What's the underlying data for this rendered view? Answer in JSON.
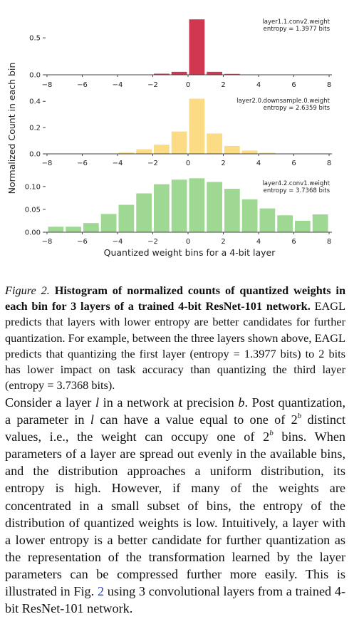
{
  "chart_data": [
    {
      "type": "bar",
      "annotation": [
        "layer1.1.conv2.weight",
        "entropy = 1.3977 bits"
      ],
      "bar_color": "#d1374f",
      "x": [
        -8,
        -7,
        -6,
        -5,
        -4,
        -3,
        -2,
        -1,
        0,
        1,
        2,
        3,
        4,
        5,
        6,
        7
      ],
      "values": [
        0,
        0,
        0,
        0,
        0,
        0.002,
        0.015,
        0.04,
        0.75,
        0.04,
        0.012,
        0.002,
        0,
        0,
        0,
        0
      ],
      "ylim": [
        0,
        0.8
      ],
      "yticks": [
        "0.0",
        "0.5"
      ],
      "xticks": [
        "−8",
        "−6",
        "−4",
        "−2",
        "0",
        "2",
        "4",
        "6",
        "8"
      ]
    },
    {
      "type": "bar",
      "annotation": [
        "layer2.0.downsample.0.weight",
        "entropy = 2.6359 bits"
      ],
      "bar_color": "#fbdb84",
      "x": [
        -8,
        -7,
        -6,
        -5,
        -4,
        -3,
        -2,
        -1,
        0,
        1,
        2,
        3,
        4,
        5,
        6,
        7
      ],
      "values": [
        0,
        0,
        0,
        0.002,
        0.01,
        0.035,
        0.07,
        0.17,
        0.42,
        0.155,
        0.06,
        0.025,
        0.008,
        0.002,
        0,
        0
      ],
      "ylim": [
        0,
        0.45
      ],
      "yticks": [
        "0.0",
        "0.2",
        "0.4"
      ],
      "xticks": [
        "−8",
        "−6",
        "−4",
        "−2",
        "0",
        "2",
        "4",
        "6",
        "8"
      ]
    },
    {
      "type": "bar",
      "annotation": [
        "layer4.2.conv1.weight",
        "entropy = 3.7368 bits"
      ],
      "bar_color": "#9ed893",
      "x": [
        -8,
        -7,
        -6,
        -5,
        -4,
        -3,
        -2,
        -1,
        0,
        1,
        2,
        3,
        4,
        5,
        6,
        7
      ],
      "values": [
        0.012,
        0.012,
        0.02,
        0.04,
        0.06,
        0.085,
        0.105,
        0.115,
        0.118,
        0.11,
        0.095,
        0.072,
        0.052,
        0.037,
        0.025,
        0.039
      ],
      "ylim": [
        0,
        0.12
      ],
      "yticks": [
        "0.00",
        "0.05",
        "0.10"
      ],
      "xticks": [
        "−8",
        "−6",
        "−4",
        "−2",
        "0",
        "2",
        "4",
        "6",
        "8"
      ],
      "xlabel": "Quantized weight bins for a 4-bit layer"
    }
  ],
  "ylabel": "Normalized Count in each bin",
  "caption": {
    "label": "Figure 2.",
    "bold": "Histogram of normalized counts of quantized weights in each bin for 3 layers of a trained 4-bit ResNet-101 network.",
    "rest": "EAGL predicts that layers with lower entropy are better candidates for further quantization. For example, between the three layers shown above, EAGL predicts that quantizing the first layer (entropy = 1.3977 bits) to 2 bits has lower impact on task accuracy than quantizing the third layer (entropy = 3.7368 bits)."
  },
  "paragraph": {
    "s1": "Consider a layer",
    "v_l": "l",
    "s2": "in a network at precision",
    "v_b": "b",
    "s3": ". Post quantization, a parameter in",
    "s4": "can have a value equal to one of",
    "pow_base": "2",
    "pow_exp": "b",
    "s5": "distinct values, i.e., the weight can occupy one of",
    "s6": "bins. When parameters of a layer are spread out evenly in the available bins, and the distribution approaches a uniform distribution, its entropy is high. However, if many of the weights are concentrated in a small subset of bins, the entropy of the distribution of quantized weights is low. Intuitively, a layer with a lower entropy is a better candidate for further quantization as the representation of the transformation learned by the layer parameters can be compressed further more easily. This is illustrated in Fig.",
    "fig_ref": "2",
    "s7": "using 3 convolutional layers from a trained 4-bit ResNet-101 network."
  }
}
